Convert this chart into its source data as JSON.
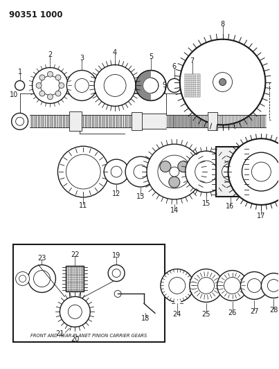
{
  "title": "90351 1000",
  "bg_color": "#ffffff",
  "line_color": "#1a1a1a",
  "fig_width": 4.03,
  "fig_height": 5.33,
  "dpi": 100,
  "box_label": "FRONT AND REAR PLANET PINION CARRIER GEARS"
}
